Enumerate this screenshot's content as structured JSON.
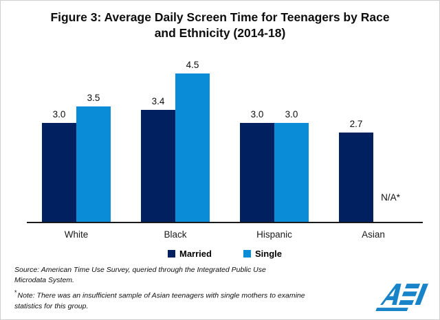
{
  "title_lines": [
    "Figure 3: Average Daily Screen Time for Teenagers by Race",
    "and Ethnicity (2014-18)"
  ],
  "chart_data": {
    "type": "bar",
    "title": "Figure 3: Average Daily Screen Time for Teenagers by Race and Ethnicity (2014-18)",
    "categories": [
      "White",
      "Black",
      "Hispanic",
      "Asian"
    ],
    "series": [
      {
        "name": "Married",
        "color": "#002060",
        "values": [
          3.0,
          3.4,
          3.0,
          2.7
        ],
        "labels": [
          "3.0",
          "3.4",
          "3.0",
          "2.7"
        ]
      },
      {
        "name": "Single",
        "color": "#0A8DD6",
        "values": [
          3.5,
          4.5,
          3.0,
          null
        ],
        "labels": [
          "3.5",
          "4.5",
          "3.0",
          "N/A*"
        ]
      }
    ],
    "na_label": "N/A*",
    "ylim": [
      0,
      5
    ],
    "grid": false,
    "y_axis_visible": false,
    "legend_position": "bottom"
  },
  "footer": {
    "source_lines": [
      "Source: American Time Use Survey, queried through the Integrated Public Use",
      "Microdata System."
    ],
    "note_marker": "*",
    "note_lines": [
      "Note: There was an insufficient sample of Asian teenagers with single mothers to examine",
      "statistics for this group."
    ]
  },
  "logo": {
    "text": "AEI",
    "color": "#1783C8"
  }
}
